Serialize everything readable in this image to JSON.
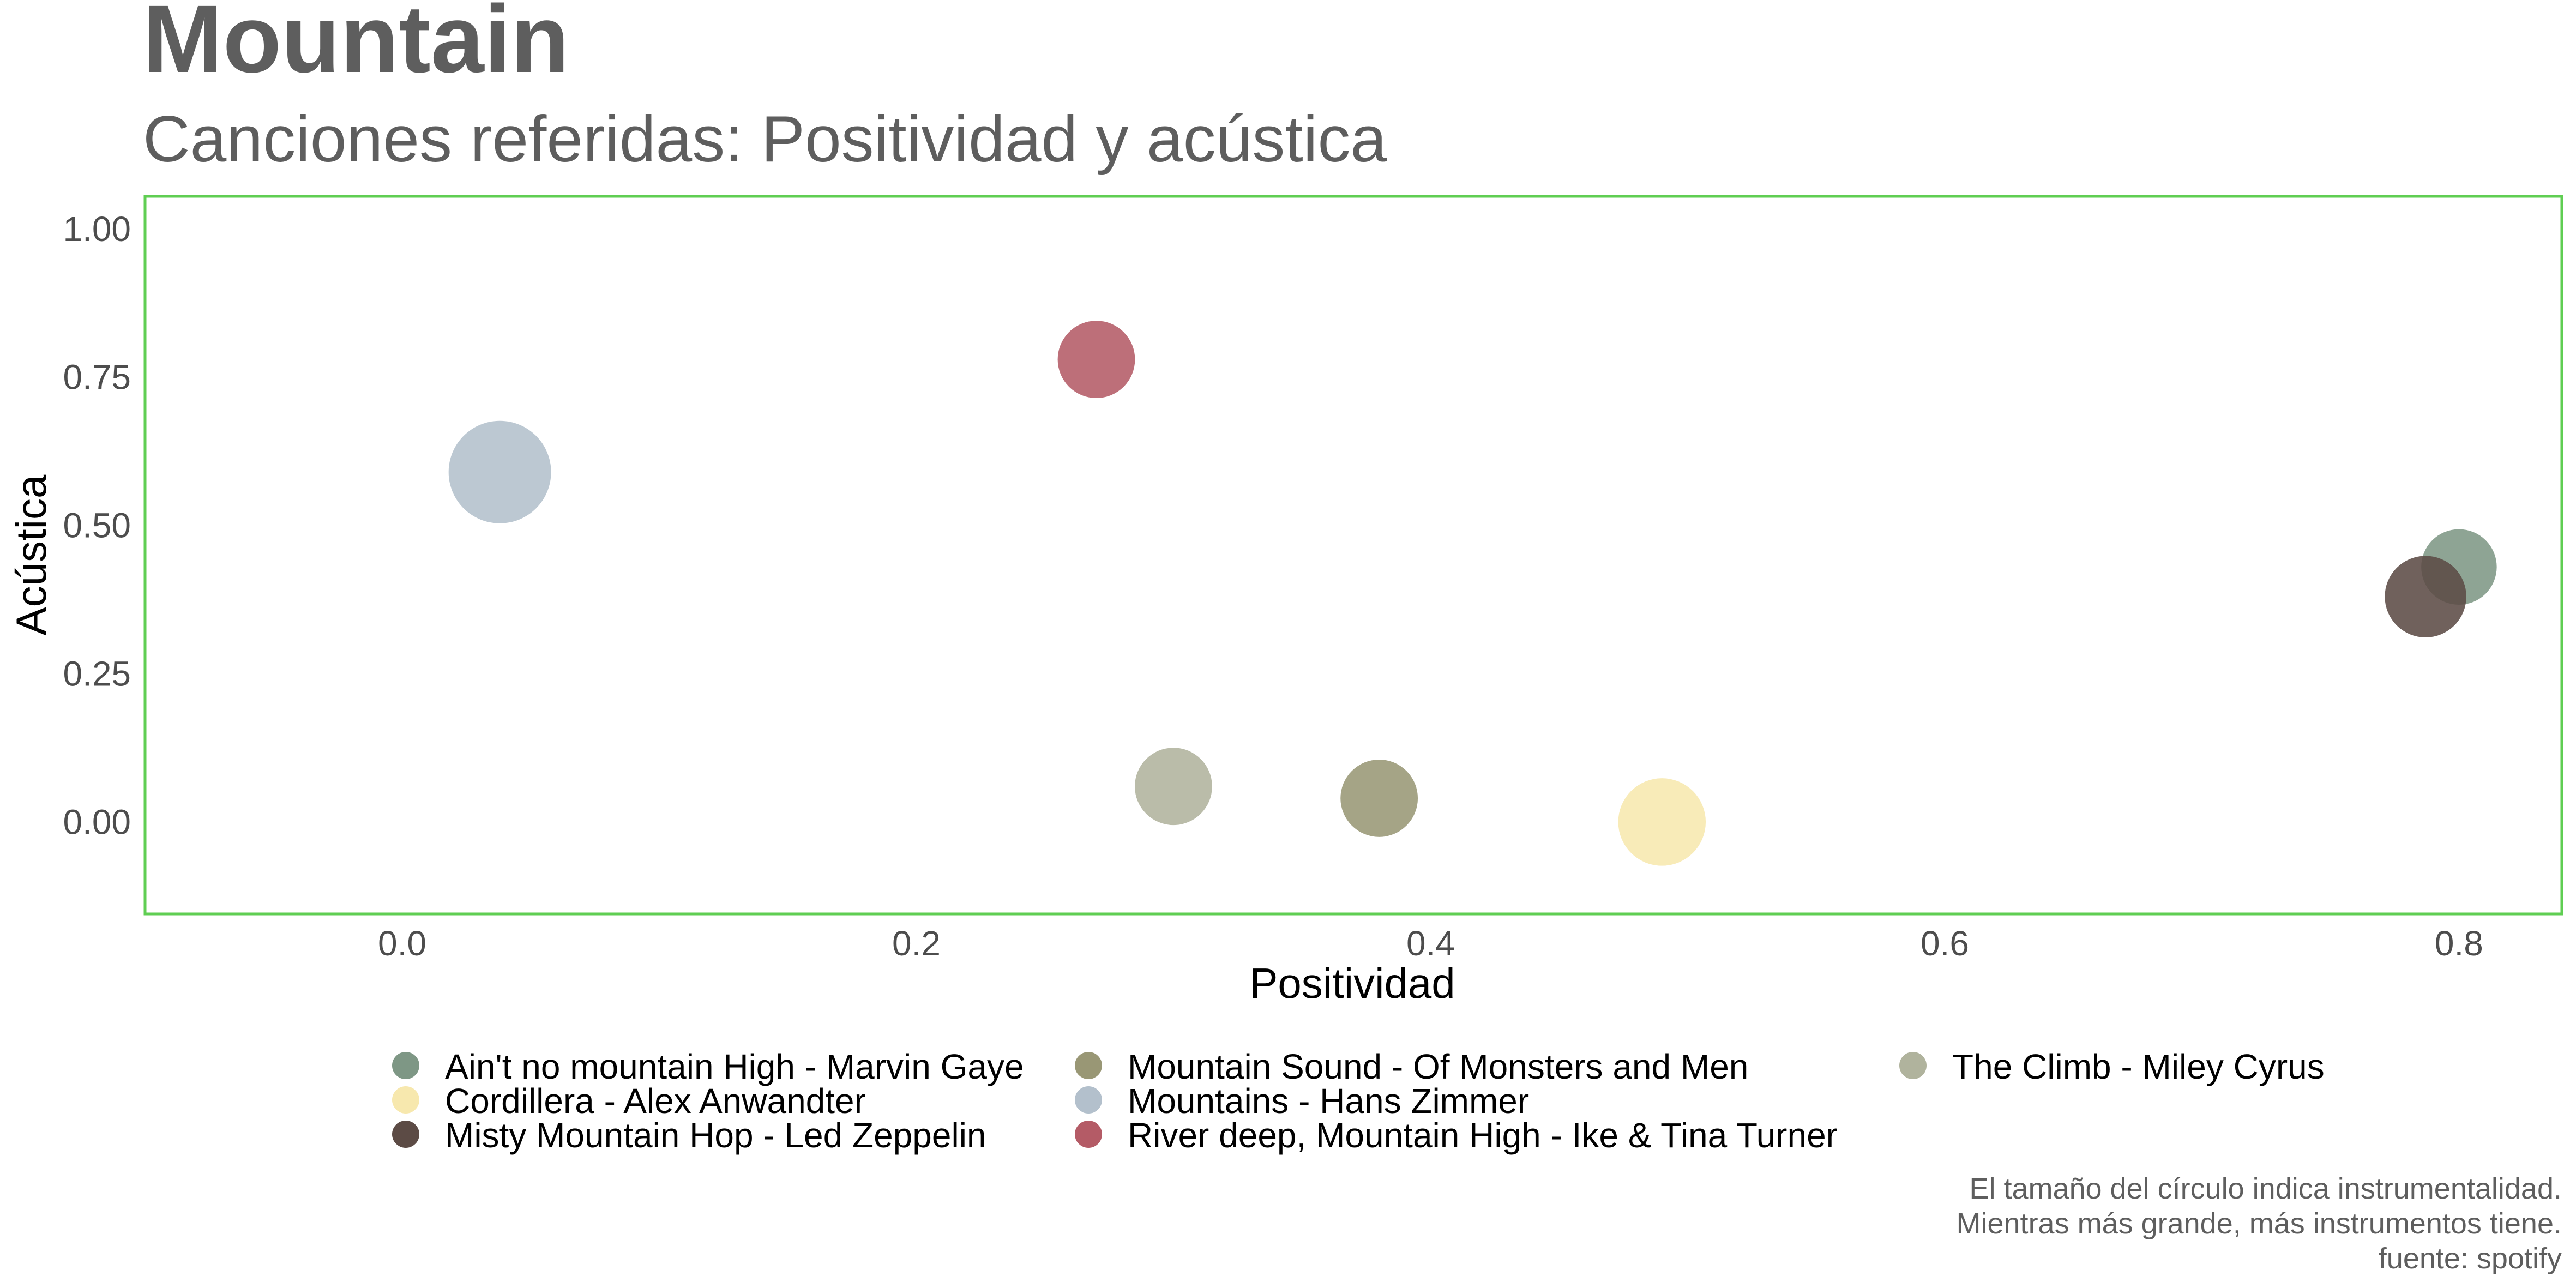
{
  "chart_data": {
    "type": "scatter",
    "title": "Mountain",
    "subtitle": "Canciones referidas: Positividad y acústica",
    "xlabel": "Positividad",
    "ylabel": "Acústica",
    "xlim": [
      -0.1,
      0.84
    ],
    "ylim": [
      -0.155,
      1.055
    ],
    "xticks": [
      0.0,
      0.2,
      0.4,
      0.6,
      0.8
    ],
    "xtick_labels": [
      "0.0",
      "0.2",
      "0.4",
      "0.6",
      "0.8"
    ],
    "yticks": [
      0.0,
      0.25,
      0.5,
      0.75,
      1.0
    ],
    "ytick_labels": [
      "0.00",
      "0.25",
      "0.50",
      "0.75",
      "1.00"
    ],
    "grid": false,
    "panel_border_color": "#5fce52",
    "legend_position": "bottom",
    "size_encodes": "instrumentalness",
    "series": [
      {
        "name": "Ain't no mountain High - Marvin Gaye",
        "x": 0.8,
        "y": 0.43,
        "size": 0.35,
        "color": "#7e9785"
      },
      {
        "name": "Cordillera - Alex Anwandter",
        "x": 0.49,
        "y": 0.0,
        "size": 0.55,
        "color": "#f7e8ae"
      },
      {
        "name": "Misty Mountain Hop - Led Zeppelin",
        "x": 0.787,
        "y": 0.38,
        "size": 0.45,
        "color": "#5c4b45"
      },
      {
        "name": "Mountain Sound - Of Monsters and Men",
        "x": 0.38,
        "y": 0.04,
        "size": 0.38,
        "color": "#999775"
      },
      {
        "name": "Mountains - Hans Zimmer",
        "x": 0.038,
        "y": 0.59,
        "size": 0.8,
        "color": "#b3c0cc"
      },
      {
        "name": "River deep, Mountain High - Ike & Tina Turner",
        "x": 0.27,
        "y": 0.78,
        "size": 0.38,
        "color": "#b45b66"
      },
      {
        "name": "The Climb - Miley Cyrus",
        "x": 0.3,
        "y": 0.06,
        "size": 0.38,
        "color": "#b0b39d"
      }
    ],
    "caption": [
      "El tamaño del círculo indica instrumentalidad.",
      "Mientras más grande, más instrumentos tiene.",
      "fuente: spotify"
    ]
  }
}
